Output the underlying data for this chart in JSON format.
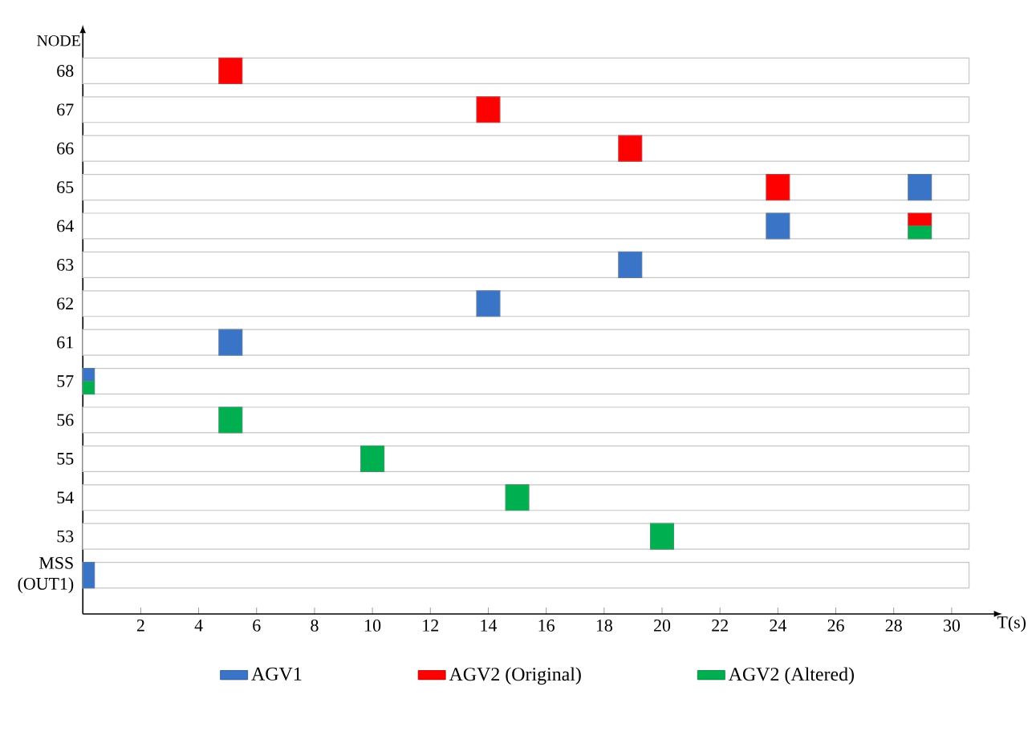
{
  "chart_data": {
    "type": "bar",
    "orientation": "horizontal",
    "xlabel": "T(s)",
    "ylabel": "NODE",
    "categories": [
      "68",
      "67",
      "66",
      "65",
      "64",
      "63",
      "62",
      "61",
      "57",
      "56",
      "55",
      "54",
      "53",
      "MSS (OUT1)"
    ],
    "xlim": [
      0,
      31.5
    ],
    "xticks": [
      2,
      4,
      6,
      8,
      10,
      12,
      14,
      16,
      18,
      20,
      22,
      24,
      26,
      28,
      30
    ],
    "legend": "bottom",
    "series": [
      {
        "color": "#ffffff",
        "base": [
          0,
          0,
          0,
          0,
          0,
          0,
          0,
          0,
          0,
          0,
          0,
          0,
          0,
          0
        ],
        "values": [
          30.6,
          30.6,
          30.6,
          30.6,
          30.6,
          30.6,
          30.6,
          30.6,
          30.6,
          30.6,
          30.6,
          30.6,
          30.6,
          30.6
        ]
      },
      {
        "name": "AGV1",
        "color": "#3a74c7",
        "base": [
          null,
          null,
          null,
          28.5,
          23.6,
          18.5,
          13.6,
          4.7,
          0,
          null,
          null,
          null,
          null,
          0
        ],
        "values": [
          null,
          null,
          null,
          0.8,
          0.8,
          0.8,
          0.8,
          0.8,
          0.4,
          null,
          null,
          null,
          null,
          0.4
        ]
      },
      {
        "name": "AGV2 (Original)",
        "color": "#ff0000",
        "base": [
          4.7,
          13.6,
          18.5,
          23.6,
          28.5,
          null,
          null,
          null,
          null,
          null,
          null,
          null,
          null,
          null
        ],
        "values": [
          0.8,
          0.8,
          0.8,
          0.8,
          0.8,
          null,
          null,
          null,
          null,
          null,
          null,
          null,
          null,
          null
        ]
      },
      {
        "name": "AGV2 (Altered)",
        "color": "#00b050",
        "base": [
          null,
          null,
          null,
          null,
          28.5,
          null,
          null,
          null,
          0,
          4.7,
          9.6,
          14.6,
          19.6,
          null
        ],
        "values": [
          null,
          null,
          null,
          null,
          0.8,
          null,
          null,
          null,
          0.4,
          0.8,
          0.8,
          0.8,
          0.8,
          null
        ]
      }
    ]
  }
}
